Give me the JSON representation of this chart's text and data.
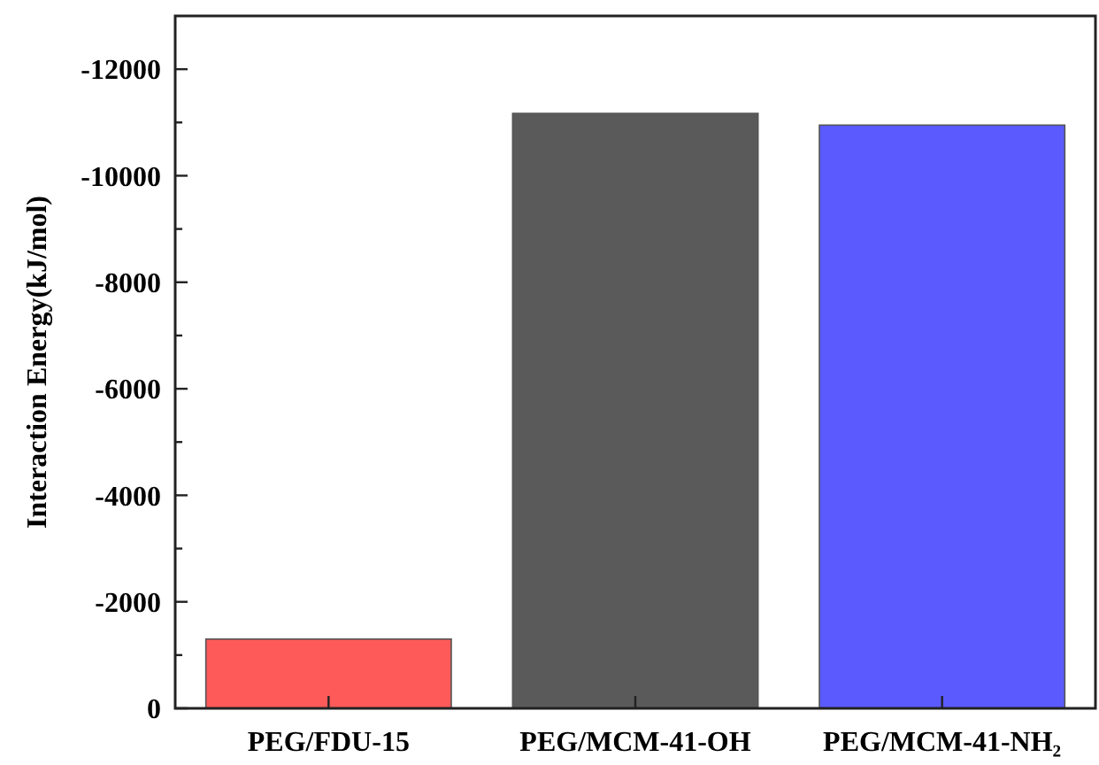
{
  "chart_data": {
    "type": "bar",
    "ylabel": "Interaction Energy(kJ/mol)",
    "categories": [
      "PEG/FDU-15",
      "PEG/MCM-41-OH",
      "PEG/MCM-41-NH₂"
    ],
    "values": [
      -1300,
      -11170,
      -10950
    ],
    "colors": [
      "#ff5a5a",
      "#5a5a5a",
      "#5a5aff"
    ],
    "ylim": [
      0,
      -13000
    ],
    "yticks": [
      0,
      {
        "value": -1000,
        "label": null
      },
      -2000,
      {
        "value": -3000,
        "label": null
      },
      -4000,
      {
        "value": -5000,
        "label": null
      },
      -6000,
      {
        "value": -7000,
        "label": null
      },
      -8000,
      {
        "value": -9000,
        "label": null
      },
      -10000,
      {
        "value": -11000,
        "label": null
      },
      -12000
    ],
    "grid": false
  }
}
